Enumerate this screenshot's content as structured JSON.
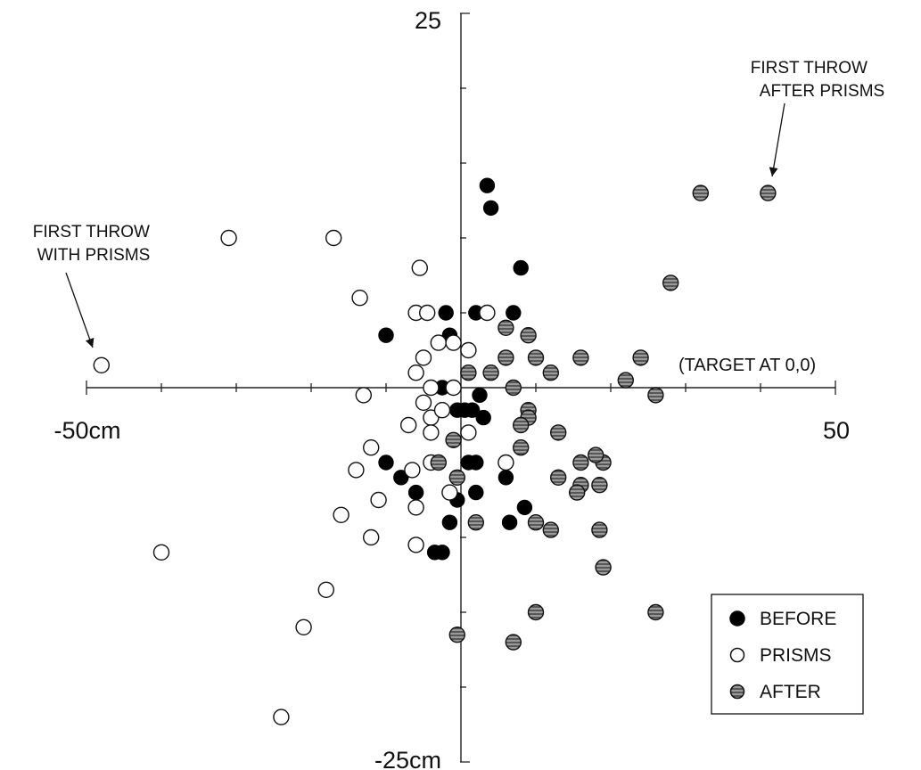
{
  "chart_data": {
    "type": "scatter",
    "title": "",
    "xlabel": "",
    "ylabel": "",
    "xlim": [
      -50,
      50
    ],
    "ylim": [
      -25,
      25
    ],
    "grid": false,
    "legend_position": "bottom-right",
    "x_tick_labels": {
      "min": "-50cm",
      "max": "50"
    },
    "y_tick_labels": {
      "max": "25",
      "min": "-25cm"
    },
    "target_label": "(TARGET AT 0,0)",
    "annotations": [
      {
        "text_lines": [
          "FIRST THROW",
          "WITH PRISMS"
        ],
        "points_to": [
          -48,
          1.5
        ]
      },
      {
        "text_lines": [
          "FIRST THROW",
          "AFTER PRISMS"
        ],
        "points_to": [
          41,
          13
        ]
      }
    ],
    "colors": {
      "before": "#000000",
      "prisms": "#ffffff",
      "after": "#8a8a8a",
      "axis": "#222222"
    },
    "series": [
      {
        "name": "BEFORE",
        "style": "filled",
        "points": [
          [
            3.5,
            13.5
          ],
          [
            4,
            12
          ],
          [
            8,
            8
          ],
          [
            -2,
            5
          ],
          [
            2,
            5
          ],
          [
            7,
            5
          ],
          [
            -10,
            3.5
          ],
          [
            -1.5,
            3.5
          ],
          [
            1,
            1
          ],
          [
            -2.5,
            0
          ],
          [
            -0.5,
            -1.5
          ],
          [
            2.5,
            -0.5
          ],
          [
            0.5,
            -1.5
          ],
          [
            1.5,
            -1.5
          ],
          [
            3,
            -2
          ],
          [
            -10,
            -5
          ],
          [
            -8,
            -6
          ],
          [
            1,
            -5
          ],
          [
            2,
            -5
          ],
          [
            6,
            -6
          ],
          [
            -6,
            -7
          ],
          [
            -0.5,
            -7.5
          ],
          [
            2,
            -7
          ],
          [
            8.5,
            -8
          ],
          [
            -1.5,
            -9
          ],
          [
            6.5,
            -9
          ],
          [
            -3.5,
            -11
          ],
          [
            -2.5,
            -11
          ]
        ]
      },
      {
        "name": "PRISMS",
        "style": "open",
        "points": [
          [
            -48,
            1.5
          ],
          [
            -31,
            10
          ],
          [
            -17,
            10
          ],
          [
            -5.5,
            8
          ],
          [
            -13.5,
            6
          ],
          [
            -6,
            5
          ],
          [
            -4.5,
            5
          ],
          [
            3.5,
            5
          ],
          [
            -3,
            3
          ],
          [
            -1,
            3
          ],
          [
            1,
            2.5
          ],
          [
            -5,
            2
          ],
          [
            -6,
            1
          ],
          [
            -4,
            0
          ],
          [
            -1,
            0
          ],
          [
            -13,
            -0.5
          ],
          [
            -5,
            -1
          ],
          [
            -4,
            -2
          ],
          [
            -2.5,
            -1.5
          ],
          [
            -7,
            -2.5
          ],
          [
            -4,
            -3
          ],
          [
            1,
            -3
          ],
          [
            -12,
            -4
          ],
          [
            -14,
            -5.5
          ],
          [
            -6.5,
            -5.5
          ],
          [
            6,
            -5
          ],
          [
            -4,
            -5
          ],
          [
            -11,
            -7.5
          ],
          [
            -16,
            -8.5
          ],
          [
            -6,
            -8
          ],
          [
            -1.5,
            -7
          ],
          [
            -12,
            -10
          ],
          [
            -40,
            -11
          ],
          [
            -6,
            -10.5
          ],
          [
            -18,
            -13.5
          ],
          [
            -21,
            -16
          ],
          [
            -24,
            -22
          ]
        ]
      },
      {
        "name": "AFTER",
        "style": "gray",
        "points": [
          [
            32,
            13
          ],
          [
            41,
            13
          ],
          [
            28,
            7
          ],
          [
            6,
            4
          ],
          [
            9,
            3.5
          ],
          [
            6,
            2
          ],
          [
            10,
            2
          ],
          [
            12,
            1
          ],
          [
            16,
            2
          ],
          [
            24,
            2
          ],
          [
            1,
            1
          ],
          [
            4,
            1
          ],
          [
            22,
            0.5
          ],
          [
            7,
            0
          ],
          [
            26,
            -0.5
          ],
          [
            9,
            -1.5
          ],
          [
            9,
            -2
          ],
          [
            8,
            -2.5
          ],
          [
            13,
            -3
          ],
          [
            -1,
            -3.5
          ],
          [
            8,
            -4
          ],
          [
            -3,
            -5
          ],
          [
            16,
            -5
          ],
          [
            19,
            -5
          ],
          [
            18,
            -4.5
          ],
          [
            -0.5,
            -6
          ],
          [
            13,
            -6
          ],
          [
            16,
            -6.5
          ],
          [
            15.5,
            -7
          ],
          [
            18.5,
            -6.5
          ],
          [
            2,
            -9
          ],
          [
            10,
            -9
          ],
          [
            12,
            -9.5
          ],
          [
            18.5,
            -9.5
          ],
          [
            19,
            -12
          ],
          [
            10,
            -15
          ],
          [
            26,
            -15
          ],
          [
            -0.5,
            -16.5
          ],
          [
            7,
            -17
          ]
        ]
      }
    ]
  }
}
